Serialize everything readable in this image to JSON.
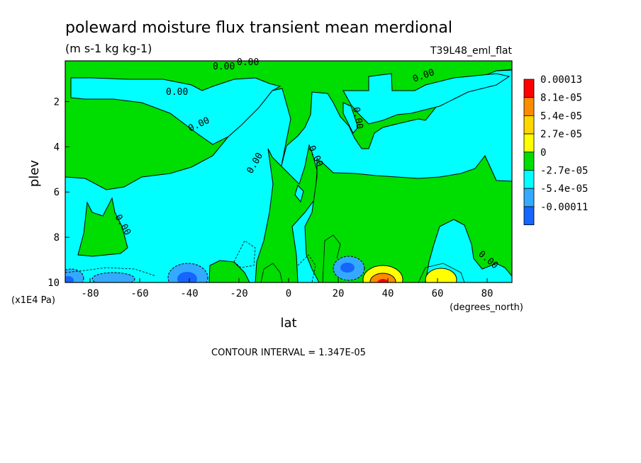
{
  "chart_data": {
    "type": "heatmap",
    "title": "poleward moisture flux transient mean merdional",
    "units": "(m s-1 kg kg-1)",
    "experiment": "T39L48_eml_flat",
    "xlabel": "lat",
    "x_units": "(degrees_north)",
    "ylabel": "plev",
    "y_units": "(x1E4 Pa)",
    "xlim": [
      -90,
      90
    ],
    "ylim": [
      10,
      0.2
    ],
    "x_ticks": [
      "-80",
      "-60",
      "-40",
      "-20",
      "0",
      "20",
      "40",
      "60",
      "80"
    ],
    "x_tick_values": [
      -80,
      -60,
      -40,
      -20,
      0,
      20,
      40,
      60,
      80
    ],
    "y_ticks": [
      "2",
      "4",
      "6",
      "8",
      "10"
    ],
    "y_tick_values": [
      2,
      4,
      6,
      8,
      10
    ],
    "contour_interval": "CONTOUR INTERVAL = 1.347E-05",
    "contour_labels": [
      "0.00",
      "0.00",
      "0.00",
      "0.00",
      "0.00",
      "0.00",
      "0.00",
      "0.00",
      "0.00",
      "0.00",
      "0.00",
      "0.00"
    ],
    "colorbar": {
      "labels": [
        "0.00013",
        "8.1e-05",
        "5.4e-05",
        "2.7e-05",
        "0",
        "-2.7e-05",
        "-5.4e-05",
        "-0.00011"
      ],
      "colors": [
        "#ff0000",
        "#ff8c00",
        "#ffd700",
        "#ffff00",
        "#00dd00",
        "#00ffff",
        "#33aaff",
        "#1565ff"
      ]
    },
    "field_colors": {
      "negative_small": "#00ffff",
      "positive_small": "#00dd00",
      "negative_mid": "#33aaff",
      "negative_strong": "#1565ff",
      "positive_mid": "#ffff00",
      "positive_strong": "#ff8c00",
      "positive_max": "#ff0000"
    }
  }
}
